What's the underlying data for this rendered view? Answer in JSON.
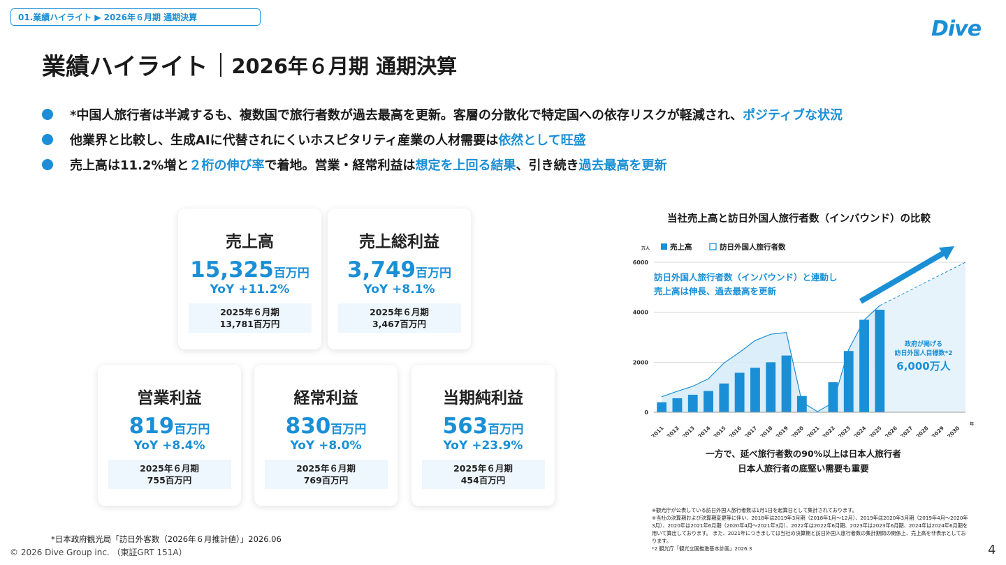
{
  "breadcrumb": "01.業績ハイライト ▶ 2026年６月期 通期決算",
  "logo": "Dive",
  "title": {
    "main": "業績ハイライト",
    "sub": "2026年６月期 通期決算"
  },
  "bullets": [
    {
      "parts": [
        {
          "t": "*中国人旅行者は半減するも、複数国で旅行者数が過去最高を更新。客層の分散化で特定国への依存リスクが軽減され、"
        },
        {
          "t": "ポジティブな状況",
          "hl": true
        }
      ]
    },
    {
      "parts": [
        {
          "t": "他業界と比較し、生成AIに代替されにくいホスピタリティ産業の人材需要は"
        },
        {
          "t": "依然として旺盛",
          "hl": true
        }
      ]
    },
    {
      "parts": [
        {
          "t": "売上高は11.2%増と"
        },
        {
          "t": "２桁の伸び率",
          "hl": true
        },
        {
          "t": "で着地。営業・経常利益は"
        },
        {
          "t": "想定を上回る結果",
          "hl": true
        },
        {
          "t": "、引き続き"
        },
        {
          "t": "過去最高を更新",
          "hl": true
        }
      ]
    }
  ],
  "cards": [
    {
      "title": "売上高",
      "value": "15,325",
      "unit": "百万円",
      "yoy": "YoY +11.2%",
      "prev_label": "2025年６月期",
      "prev_value": "13,781百万円"
    },
    {
      "title": "売上総利益",
      "value": "3,749",
      "unit": "百万円",
      "yoy": "YoY +8.1%",
      "prev_label": "2025年６月期",
      "prev_value": "3,467百万円"
    },
    {
      "title": "営業利益",
      "value": "819",
      "unit": "百万円",
      "yoy": "YoY +8.4%",
      "prev_label": "2025年６月期",
      "prev_value": "755百万円"
    },
    {
      "title": "経常利益",
      "value": "830",
      "unit": "百万円",
      "yoy": "YoY +8.0%",
      "prev_label": "2025年６月期",
      "prev_value": "769百万円"
    },
    {
      "title": "当期純利益",
      "value": "563",
      "unit": "百万円",
      "yoy": "YoY +23.9%",
      "prev_label": "2025年６月期",
      "prev_value": "454百万円"
    }
  ],
  "chart_data": {
    "type": "bar",
    "title": "当社売上高と訪日外国人旅行者数（インバウンド）の比較",
    "y_unit": "万人",
    "x_unit": "年",
    "categories": [
      "2011",
      "2012",
      "2013",
      "2014",
      "2015",
      "2016",
      "2017",
      "2018",
      "2019",
      "2020",
      "2021",
      "2022",
      "2023",
      "2024",
      "2025",
      "2026",
      "2027",
      "2028",
      "2029",
      "2030"
    ],
    "yticks": [
      0,
      2000,
      4000,
      6000
    ],
    "ylim": [
      0,
      6000
    ],
    "legend": [
      "売上高",
      "訪日外国人旅行者数"
    ],
    "series": [
      {
        "name": "売上高",
        "kind": "bar",
        "values": [
          400,
          560,
          700,
          850,
          1150,
          1580,
          1780,
          2000,
          2270,
          650,
          null,
          1200,
          2450,
          3700,
          4100,
          null,
          null,
          null,
          null,
          null
        ]
      },
      {
        "name": "訪日外国人旅行者数",
        "kind": "area",
        "values": [
          620,
          840,
          1040,
          1340,
          1970,
          2400,
          2870,
          3120,
          3190,
          410,
          25,
          380,
          2510,
          3690,
          4270,
          null,
          null,
          null,
          null,
          null
        ]
      }
    ],
    "target": {
      "year": "2030",
      "value": 6000
    },
    "annotation": "訪日外国人旅行者数（インバウンド）と連動し\n売上高は伸長、過去最高を更新",
    "target_label": [
      "政府が掲げる",
      "訪日外国人目標数*2",
      "6,000万人"
    ],
    "colors": {
      "bar": "#1a8fd6",
      "line": "#1a8fd6",
      "area": "#d8ecf8"
    }
  },
  "chart_notes": [
    "一方で、延べ旅行者数の90%以上は日本人旅行者",
    "日本人旅行者の底堅い需要も重要"
  ],
  "footnotes": [
    "※観光庁が公表している訪日外国人旅行者数は1月1日を起算日として集計されております。",
    "※当社の決算期および決算期変更等に伴い、2018年は2019年3月期（2018年1月〜12月）、2019年は2020年3月期（2019年4月〜2020年3月）、2020年は2021年6月期（2020年4月〜2021年3月）、2022年は2022年6月期、2023年は2023年6月期、2024年は2024年6月期を用いて算出しております。 また、2021年につきましては当社の決算期と訪日外国人旅行者数の集計期間の関係上、売上高を非表示としております。",
    "*2 観光庁「観光立国推進基本計画」2026.3"
  ],
  "footnote_left": "*日本政府観光局「訪日外客数（2026年６月推計値）」2026.06",
  "copyright": "© 2026 Dive Group inc. （東証GRT 151A）",
  "page_number": "4"
}
